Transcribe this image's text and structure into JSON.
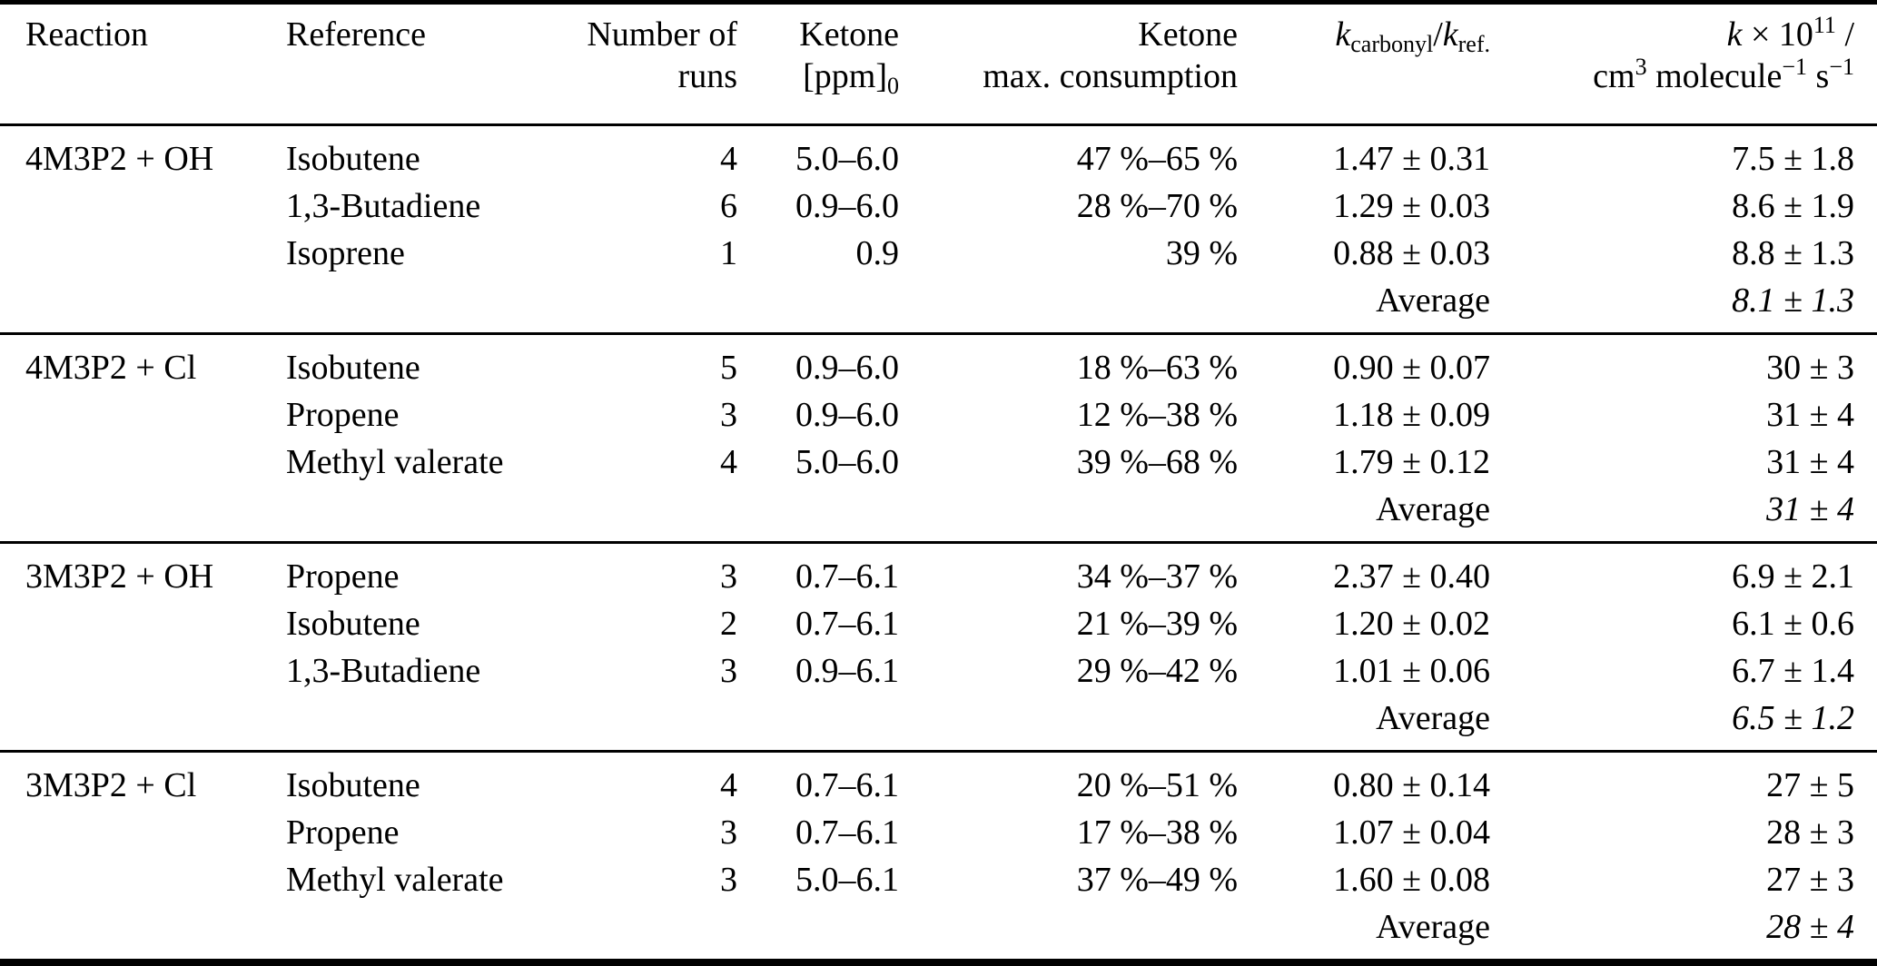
{
  "table": {
    "header": {
      "reaction": "Reaction",
      "reference": "Reference",
      "runs1": "Number of",
      "runs2": "runs",
      "ppm1": "Ketone",
      "ppm2base": "[ppm]",
      "ppm2sub": "0",
      "cons1": "Ketone",
      "cons2": "max. consumption",
      "ratio_k1": "k",
      "ratio_sub1": "carbonyl",
      "ratio_slash": "/",
      "ratio_k2": "k",
      "ratio_sub2": "ref.",
      "k1_k": "k",
      "k1_times": " × 10",
      "k1_exp": "11",
      "k1_slash": " /",
      "k2_cm": "cm",
      "k2_cmexp": "3",
      "k2_mol": " molecule",
      "k2_molexp": "−1",
      "k2_s": " s",
      "k2_sexp": "−1"
    },
    "blocks": [
      {
        "reaction": "4M3P2 + OH",
        "rows": [
          {
            "reference": "Isobutene",
            "runs": "4",
            "ppm": "5.0–6.0",
            "consumption": "47 %–65 %",
            "ratio": "1.47 ± 0.31",
            "k": "7.5 ± 1.8"
          },
          {
            "reference": "1,3-Butadiene",
            "runs": "6",
            "ppm": "0.9–6.0",
            "consumption": "28 %–70 %",
            "ratio": "1.29 ± 0.03",
            "k": "8.6 ± 1.9"
          },
          {
            "reference": "Isoprene",
            "runs": "1",
            "ppm": "0.9",
            "consumption": "39 %",
            "ratio": "0.88 ± 0.03",
            "k": "8.8 ± 1.3"
          }
        ],
        "average_label": "Average",
        "average_k": "8.1 ± 1.3"
      },
      {
        "reaction": "4M3P2 + Cl",
        "rows": [
          {
            "reference": "Isobutene",
            "runs": "5",
            "ppm": "0.9–6.0",
            "consumption": "18 %–63 %",
            "ratio": "0.90 ± 0.07",
            "k": "30 ± 3"
          },
          {
            "reference": "Propene",
            "runs": "3",
            "ppm": "0.9–6.0",
            "consumption": "12 %–38 %",
            "ratio": "1.18 ± 0.09",
            "k": "31 ± 4"
          },
          {
            "reference": "Methyl valerate",
            "runs": "4",
            "ppm": "5.0–6.0",
            "consumption": "39 %–68 %",
            "ratio": "1.79 ± 0.12",
            "k": "31 ± 4"
          }
        ],
        "average_label": "Average",
        "average_k": "31 ± 4"
      },
      {
        "reaction": "3M3P2 + OH",
        "rows": [
          {
            "reference": "Propene",
            "runs": "3",
            "ppm": "0.7–6.1",
            "consumption": "34 %–37 %",
            "ratio": "2.37 ± 0.40",
            "k": "6.9 ± 2.1"
          },
          {
            "reference": "Isobutene",
            "runs": "2",
            "ppm": "0.7–6.1",
            "consumption": "21 %–39 %",
            "ratio": "1.20 ± 0.02",
            "k": "6.1 ± 0.6"
          },
          {
            "reference": "1,3-Butadiene",
            "runs": "3",
            "ppm": "0.9–6.1",
            "consumption": "29 %–42 %",
            "ratio": "1.01 ± 0.06",
            "k": "6.7 ± 1.4"
          }
        ],
        "average_label": "Average",
        "average_k": "6.5 ± 1.2"
      },
      {
        "reaction": "3M3P2 + Cl",
        "rows": [
          {
            "reference": "Isobutene",
            "runs": "4",
            "ppm": "0.7–6.1",
            "consumption": "20 %–51 %",
            "ratio": "0.80 ± 0.14",
            "k": "27 ± 5"
          },
          {
            "reference": "Propene",
            "runs": "3",
            "ppm": "0.7–6.1",
            "consumption": "17 %–38 %",
            "ratio": "1.07 ± 0.04",
            "k": "28 ± 3"
          },
          {
            "reference": "Methyl valerate",
            "runs": "3",
            "ppm": "5.0–6.1",
            "consumption": "37 %–49 %",
            "ratio": "1.60 ± 0.08",
            "k": "27 ± 3"
          }
        ],
        "average_label": "Average",
        "average_k": "28 ± 4"
      }
    ]
  }
}
